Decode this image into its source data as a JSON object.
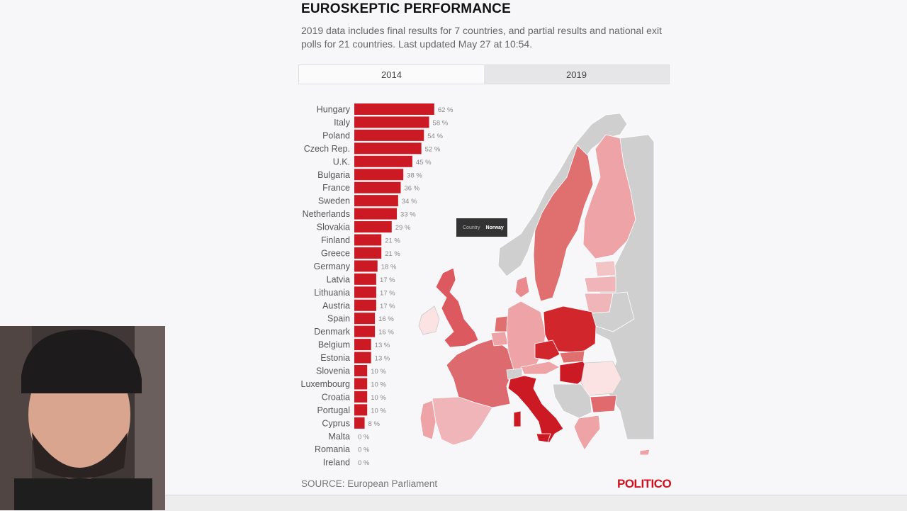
{
  "title": "EUROSKEPTIC PERFORMANCE",
  "subtitle": "2019 data includes final results for 7 countries, and partial results and national exit polls for 21 countries. Last updated May 27 at 10:54.",
  "tabs": [
    {
      "label": "2014",
      "active": true
    },
    {
      "label": "2019",
      "active": false
    }
  ],
  "tooltip": {
    "key": "Country",
    "value": "Norway"
  },
  "source": "SOURCE: European Parliament",
  "logo": "POLITICO",
  "colors": {
    "bar": "#cc1a24",
    "map_gray": "#cfcfcf",
    "brand": "#d0101e"
  },
  "chart_data": {
    "type": "bar",
    "orientation": "horizontal",
    "unit": "%",
    "categories": [
      "Hungary",
      "Italy",
      "Poland",
      "Czech Rep.",
      "U.K.",
      "Bulgaria",
      "France",
      "Sweden",
      "Netherlands",
      "Slovakia",
      "Finland",
      "Greece",
      "Germany",
      "Latvia",
      "Lithuania",
      "Austria",
      "Spain",
      "Denmark",
      "Belgium",
      "Estonia",
      "Slovenia",
      "Luxembourg",
      "Croatia",
      "Portugal",
      "Cyprus",
      "Malta",
      "Romania",
      "Ireland"
    ],
    "values": [
      62,
      58,
      54,
      52,
      45,
      38,
      36,
      34,
      33,
      29,
      21,
      21,
      18,
      17,
      17,
      17,
      16,
      16,
      13,
      13,
      10,
      10,
      10,
      10,
      8,
      0,
      0,
      0
    ],
    "value_labels": [
      "62 %",
      "58 %",
      "54 %",
      "52 %",
      "45 %",
      "38 %",
      "36 %",
      "34 %",
      "33 %",
      "29 %",
      "21 %",
      "21 %",
      "18 %",
      "17 %",
      "17 %",
      "17 %",
      "16 %",
      "16 %",
      "13 %",
      "13 %",
      "10 %",
      "10 %",
      "10 %",
      "10 %",
      "8 %",
      "0 %",
      "0 %",
      "0 %"
    ]
  }
}
